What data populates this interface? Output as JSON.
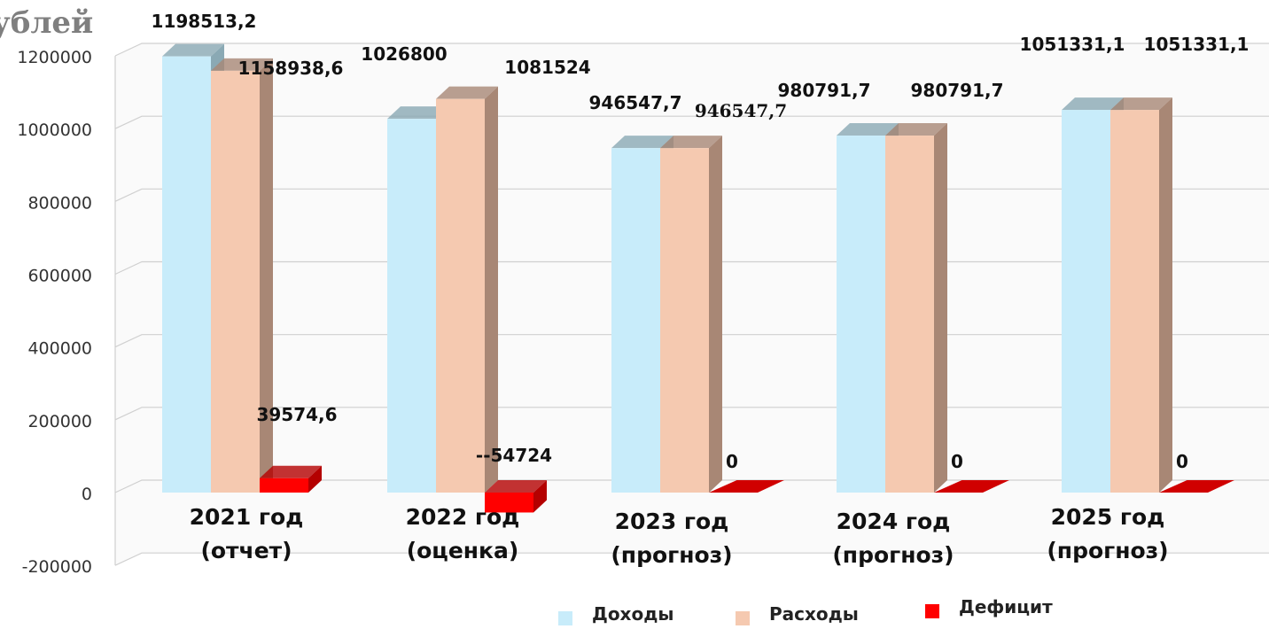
{
  "page": {
    "title": "ублей"
  },
  "chart_data": {
    "type": "bar",
    "categories": [
      [
        "2021 год",
        "(отчет)"
      ],
      [
        "2022 год",
        "(оценка)"
      ],
      [
        "2023 год",
        "(прогноз)"
      ],
      [
        "2024 год",
        "(прогноз)"
      ],
      [
        "2025 год",
        "(прогноз)"
      ]
    ],
    "series": [
      {
        "name": "Доходы",
        "color": "#c8ecfa",
        "side_color": "#8aa9b4",
        "values": [
          1198513.2,
          1026800,
          946547.7,
          980791.7,
          1051331.1
        ],
        "labels": [
          "1198513,2",
          "1026800",
          "946547,7",
          "980791,7",
          "1051331,1"
        ]
      },
      {
        "name": "Расходы",
        "color": "#f5c9b0",
        "side_color": "#a88775",
        "values": [
          1158938.6,
          1081524,
          946547.7,
          980791.7,
          1051331.1
        ],
        "labels": [
          "1158938,6",
          "1081524",
          "946547,7",
          "980791,7",
          "1051331,1"
        ]
      },
      {
        "name": "Дефицит",
        "color": "#ff0000",
        "side_color": "#b40000",
        "values": [
          39574.6,
          -54724,
          0,
          0,
          0
        ],
        "labels": [
          "39574,6",
          "--54724",
          "0",
          "0",
          "0"
        ]
      }
    ],
    "yticks": [
      1200000,
      1000000,
      800000,
      600000,
      400000,
      200000,
      0,
      -200000
    ],
    "ylim": [
      -200000,
      1200000
    ],
    "grid": true,
    "legend": "bottom"
  }
}
